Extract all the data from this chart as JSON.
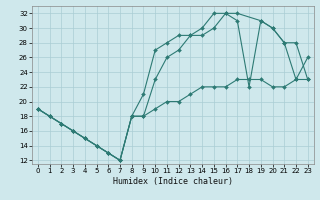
{
  "xlabel": "Humidex (Indice chaleur)",
  "bg_color": "#cfe8ec",
  "grid_color": "#aacdd4",
  "line_color": "#2d7a74",
  "xlim": [
    -0.5,
    23.5
  ],
  "ylim": [
    11.5,
    33
  ],
  "xticks": [
    0,
    1,
    2,
    3,
    4,
    5,
    6,
    7,
    8,
    9,
    10,
    11,
    12,
    13,
    14,
    15,
    16,
    17,
    18,
    19,
    20,
    21,
    22,
    23
  ],
  "yticks": [
    12,
    14,
    16,
    18,
    20,
    22,
    24,
    26,
    28,
    30,
    32
  ],
  "lines": [
    {
      "x": [
        0,
        1,
        2,
        3,
        4,
        5,
        6,
        7,
        8,
        9,
        10,
        11,
        12,
        13,
        14,
        15,
        16,
        17,
        19,
        20,
        21,
        22,
        23
      ],
      "y": [
        19,
        18,
        17,
        16,
        15,
        14,
        13,
        12,
        18,
        21,
        27,
        28,
        29,
        29,
        30,
        32,
        32,
        32,
        31,
        30,
        28,
        23,
        26
      ]
    },
    {
      "x": [
        0,
        1,
        2,
        3,
        4,
        5,
        6,
        7,
        8,
        9,
        10,
        11,
        12,
        13,
        14,
        15,
        16,
        17,
        18,
        19,
        20,
        21,
        22,
        23
      ],
      "y": [
        19,
        18,
        17,
        16,
        15,
        14,
        13,
        12,
        18,
        18,
        23,
        26,
        27,
        29,
        29,
        30,
        32,
        31,
        22,
        31,
        30,
        28,
        28,
        23
      ]
    },
    {
      "x": [
        0,
        1,
        2,
        3,
        4,
        5,
        6,
        7,
        8,
        9,
        10,
        11,
        12,
        13,
        14,
        15,
        16,
        17,
        18,
        19,
        20,
        21,
        22,
        23
      ],
      "y": [
        19,
        18,
        17,
        16,
        15,
        14,
        13,
        12,
        18,
        18,
        19,
        20,
        20,
        21,
        22,
        22,
        22,
        23,
        23,
        23,
        22,
        22,
        23,
        23
      ]
    }
  ]
}
